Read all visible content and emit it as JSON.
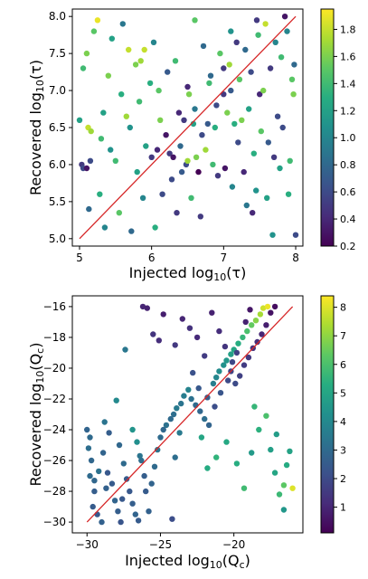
{
  "chart_data": [
    {
      "type": "scatter",
      "title": "",
      "xlabel": "Injected log10(τ)",
      "ylabel": "Recovered log10(τ)",
      "xlabel_parts": {
        "pre": "Injected log",
        "sub": "10",
        "post": "(τ)"
      },
      "ylabel_parts": {
        "pre": "Recovered log",
        "sub": "10",
        "post": "(τ)"
      },
      "xlim": [
        4.9,
        8.1
      ],
      "ylim": [
        4.9,
        8.1
      ],
      "xticks": [
        "5",
        "6",
        "7",
        "8"
      ],
      "xtick_values": [
        5,
        6,
        7,
        8
      ],
      "yticks": [
        "5.0",
        "5.5",
        "6.0",
        "6.5",
        "7.0",
        "7.5",
        "8.0"
      ],
      "ytick_values": [
        5.0,
        5.5,
        6.0,
        6.5,
        7.0,
        7.5,
        8.0
      ],
      "reference_line": {
        "from": [
          5,
          5
        ],
        "to": [
          8,
          8
        ],
        "color": "#d62728"
      },
      "colorbar": {
        "cmap": "viridis",
        "range": [
          0.2,
          1.95
        ],
        "ticks": [
          "0.2",
          "0.4",
          "0.6",
          "0.8",
          "1.0",
          "1.2",
          "1.4",
          "1.6",
          "1.8"
        ],
        "tick_values": [
          0.2,
          0.4,
          0.6,
          0.8,
          1.0,
          1.2,
          1.4,
          1.6,
          1.8
        ]
      },
      "points": [
        [
          5.03,
          6.0,
          0.5
        ],
        [
          5.05,
          5.95,
          0.6
        ],
        [
          5.1,
          5.95,
          0.3
        ],
        [
          5.13,
          5.4,
          0.8
        ],
        [
          5.15,
          6.05,
          0.6
        ],
        [
          5.0,
          6.6,
          1.2
        ],
        [
          5.05,
          7.3,
          1.4
        ],
        [
          5.1,
          7.5,
          1.6
        ],
        [
          5.12,
          6.5,
          1.8
        ],
        [
          5.16,
          6.45,
          1.7
        ],
        [
          5.2,
          7.8,
          1.5
        ],
        [
          5.25,
          7.95,
          1.9
        ],
        [
          5.28,
          5.6,
          1.3
        ],
        [
          5.3,
          6.35,
          1.4
        ],
        [
          5.33,
          6.7,
          1.2
        ],
        [
          5.35,
          5.15,
          1.0
        ],
        [
          5.4,
          7.2,
          1.6
        ],
        [
          5.43,
          6.2,
          1.1
        ],
        [
          5.45,
          7.7,
          1.2
        ],
        [
          5.5,
          6.05,
          1.4
        ],
        [
          5.55,
          5.35,
          1.5
        ],
        [
          5.58,
          6.95,
          1.3
        ],
        [
          5.6,
          7.9,
          0.9
        ],
        [
          5.65,
          6.65,
          1.7
        ],
        [
          5.68,
          7.55,
          1.8
        ],
        [
          5.7,
          6.5,
          1.1
        ],
        [
          5.72,
          5.1,
          0.8
        ],
        [
          5.78,
          7.35,
          1.6
        ],
        [
          5.8,
          5.9,
          1.2
        ],
        [
          5.83,
          6.85,
          1.4
        ],
        [
          5.85,
          7.4,
          1.7
        ],
        [
          5.88,
          5.55,
          1.0
        ],
        [
          5.9,
          7.55,
          1.8
        ],
        [
          5.92,
          6.25,
          1.2
        ],
        [
          5.98,
          7.1,
          1.3
        ],
        [
          6.0,
          6.1,
          0.5
        ],
        [
          6.03,
          7.65,
          1.0
        ],
        [
          6.05,
          5.15,
          1.3
        ],
        [
          6.08,
          6.2,
          0.4
        ],
        [
          6.1,
          7.0,
          1.5
        ],
        [
          6.12,
          6.6,
          1.6
        ],
        [
          6.15,
          5.6,
          0.6
        ],
        [
          6.2,
          6.4,
          0.3
        ],
        [
          6.22,
          7.25,
          0.7
        ],
        [
          6.25,
          6.15,
          0.5
        ],
        [
          6.28,
          5.8,
          0.6
        ],
        [
          6.3,
          6.1,
          0.3
        ],
        [
          6.33,
          7.4,
          1.4
        ],
        [
          6.35,
          5.35,
          0.5
        ],
        [
          6.38,
          6.7,
          0.4
        ],
        [
          6.4,
          6.25,
          0.8
        ],
        [
          6.42,
          5.9,
          0.7
        ],
        [
          6.45,
          6.6,
          0.5
        ],
        [
          6.48,
          6.0,
          0.6
        ],
        [
          6.5,
          6.05,
          1.7
        ],
        [
          6.5,
          7.05,
          0.4
        ],
        [
          6.52,
          6.95,
          1.6
        ],
        [
          6.55,
          5.55,
          1.4
        ],
        [
          6.58,
          6.55,
          1.2
        ],
        [
          6.6,
          6.75,
          0.9
        ],
        [
          6.6,
          7.95,
          1.5
        ],
        [
          6.62,
          6.1,
          1.6
        ],
        [
          6.65,
          5.9,
          0.2
        ],
        [
          6.68,
          5.3,
          0.5
        ],
        [
          6.7,
          6.4,
          0.6
        ],
        [
          6.72,
          7.6,
          0.8
        ],
        [
          6.75,
          6.2,
          1.7
        ],
        [
          6.78,
          6.55,
          0.7
        ],
        [
          6.8,
          7.1,
          1.4
        ],
        [
          6.82,
          7.2,
          0.8
        ],
        [
          6.85,
          6.0,
          1.4
        ],
        [
          6.88,
          6.5,
          1.3
        ],
        [
          6.9,
          6.8,
          0.6
        ],
        [
          6.92,
          5.85,
          0.5
        ],
        [
          6.95,
          7.5,
          1.5
        ],
        [
          7.0,
          7.3,
          0.5
        ],
        [
          7.0,
          6.95,
          0.5
        ],
        [
          7.02,
          5.95,
          0.3
        ],
        [
          7.05,
          6.7,
          1.6
        ],
        [
          7.08,
          7.35,
          1.7
        ],
        [
          7.1,
          7.0,
          0.7
        ],
        [
          7.12,
          5.7,
          1.0
        ],
        [
          7.15,
          6.55,
          1.3
        ],
        [
          7.18,
          7.65,
          0.5
        ],
        [
          7.2,
          6.3,
          0.6
        ],
        [
          7.22,
          7.15,
          1.5
        ],
        [
          7.25,
          6.6,
          1.6
        ],
        [
          7.28,
          5.9,
          0.4
        ],
        [
          7.3,
          7.55,
          0.8
        ],
        [
          7.32,
          5.45,
          0.9
        ],
        [
          7.35,
          6.75,
          1.2
        ],
        [
          7.38,
          7.25,
          0.6
        ],
        [
          7.4,
          5.35,
          0.4
        ],
        [
          7.42,
          6.15,
          1.3
        ],
        [
          7.45,
          5.65,
          1.1
        ],
        [
          7.48,
          7.75,
          1.4
        ],
        [
          7.5,
          6.95,
          0.4
        ],
        [
          7.52,
          6.45,
          1.5
        ],
        [
          7.55,
          7.0,
          1.6
        ],
        [
          7.58,
          7.9,
          1.8
        ],
        [
          7.6,
          5.55,
          1.2
        ],
        [
          7.62,
          6.3,
          0.7
        ],
        [
          7.65,
          7.3,
          0.5
        ],
        [
          7.68,
          5.05,
          1.1
        ],
        [
          7.7,
          6.1,
          0.5
        ],
        [
          7.72,
          7.65,
          1.0
        ],
        [
          7.75,
          6.65,
          0.6
        ],
        [
          7.78,
          5.95,
          1.2
        ],
        [
          7.8,
          7.45,
          1.4
        ],
        [
          7.82,
          6.5,
          0.6
        ],
        [
          7.85,
          8.0,
          0.3
        ],
        [
          7.88,
          7.8,
          1.0
        ],
        [
          7.9,
          5.6,
          1.3
        ],
        [
          7.92,
          6.05,
          1.4
        ],
        [
          7.95,
          7.15,
          1.5
        ],
        [
          7.97,
          6.95,
          1.6
        ],
        [
          8.0,
          5.05,
          0.6
        ],
        [
          7.98,
          7.35,
          0.8
        ],
        [
          7.46,
          7.95,
          0.5
        ],
        [
          7.1,
          7.8,
          1.1
        ]
      ]
    },
    {
      "type": "scatter",
      "title": "",
      "xlabel": "Injected log10(Qc)",
      "ylabel": "Recovered log10(Qc)",
      "xlabel_parts": {
        "pre": "Injected log",
        "sub": "10",
        "post": "(Q",
        "sub2": "c",
        "post2": ")"
      },
      "ylabel_parts": {
        "pre": "Recovered log",
        "sub": "10",
        "post": "(Q",
        "sub2": "c",
        "post2": ")"
      },
      "xlim": [
        -31,
        -15.3
      ],
      "ylim": [
        -30.7,
        -15.3
      ],
      "xticks": [
        "−30",
        "−25",
        "−20"
      ],
      "xtick_values": [
        -30,
        -25,
        -20
      ],
      "yticks": [
        "−30",
        "−28",
        "−26",
        "−24",
        "−22",
        "−20",
        "−18",
        "−16"
      ],
      "ytick_values": [
        -30,
        -28,
        -26,
        -24,
        -22,
        -20,
        -18,
        -16
      ],
      "reference_line": {
        "from": [
          -30,
          -30
        ],
        "to": [
          -16,
          -16
        ],
        "color": "#d62728"
      },
      "colorbar": {
        "cmap": "viridis",
        "range": [
          0.1,
          8.4
        ],
        "ticks": [
          "1",
          "2",
          "3",
          "4",
          "5",
          "6",
          "7",
          "8"
        ],
        "tick_values": [
          1,
          2,
          3,
          4,
          5,
          6,
          7,
          8
        ]
      },
      "points": [
        [
          -30.0,
          -24.0,
          2.8
        ],
        [
          -29.8,
          -24.5,
          3.0
        ],
        [
          -29.9,
          -25.2,
          3.1
        ],
        [
          -29.7,
          -26.0,
          2.9
        ],
        [
          -29.8,
          -27.0,
          3.0
        ],
        [
          -29.5,
          -28.0,
          2.6
        ],
        [
          -29.6,
          -29.0,
          2.5
        ],
        [
          -29.3,
          -29.5,
          2.4
        ],
        [
          -29.0,
          -30.0,
          2.7
        ],
        [
          -28.9,
          -25.5,
          2.8
        ],
        [
          -28.8,
          -23.5,
          3.3
        ],
        [
          -28.5,
          -24.2,
          2.6
        ],
        [
          -28.6,
          -26.8,
          2.4
        ],
        [
          -28.3,
          -27.5,
          2.5
        ],
        [
          -28.1,
          -28.6,
          2.8
        ],
        [
          -27.9,
          -29.3,
          2.6
        ],
        [
          -27.7,
          -30.0,
          2.3
        ],
        [
          -27.8,
          -25.0,
          2.9
        ],
        [
          -27.5,
          -26.2,
          3.0
        ],
        [
          -27.3,
          -27.2,
          2.5
        ],
        [
          -27.1,
          -28.0,
          2.4
        ],
        [
          -26.9,
          -28.8,
          2.6
        ],
        [
          -26.7,
          -29.5,
          2.8
        ],
        [
          -26.5,
          -29.9,
          2.5
        ],
        [
          -26.9,
          -24.0,
          4.4
        ],
        [
          -26.6,
          -24.8,
          4.2
        ],
        [
          -26.3,
          -26.0,
          3.1
        ],
        [
          -26.1,
          -27.0,
          2.6
        ],
        [
          -26.0,
          -28.0,
          2.5
        ],
        [
          -25.8,
          -29.3,
          2.7
        ],
        [
          -25.6,
          -27.5,
          2.8
        ],
        [
          -25.4,
          -26.4,
          3.0
        ],
        [
          -25.2,
          -25.3,
          3.3
        ],
        [
          -25.0,
          -24.5,
          3.0
        ],
        [
          -24.8,
          -24.0,
          2.9
        ],
        [
          -24.6,
          -23.7,
          3.2
        ],
        [
          -24.3,
          -23.3,
          3.0
        ],
        [
          -24.1,
          -23.0,
          3.1
        ],
        [
          -23.9,
          -22.6,
          3.5
        ],
        [
          -23.6,
          -22.3,
          3.3
        ],
        [
          -23.4,
          -21.8,
          3.6
        ],
        [
          -23.1,
          -21.4,
          3.8
        ],
        [
          -22.9,
          -22.0,
          3.2
        ],
        [
          -22.6,
          -22.4,
          3.0
        ],
        [
          -22.3,
          -22.8,
          2.9
        ],
        [
          -22.0,
          -23.3,
          3.1
        ],
        [
          -21.7,
          -23.7,
          2.8
        ],
        [
          -21.4,
          -21.0,
          3.6
        ],
        [
          -21.2,
          -20.6,
          3.9
        ],
        [
          -21.0,
          -20.2,
          4.1
        ],
        [
          -20.7,
          -19.8,
          4.3
        ],
        [
          -20.5,
          -19.5,
          4.5
        ],
        [
          -20.2,
          -19.1,
          4.8
        ],
        [
          -20.0,
          -18.8,
          5.0
        ],
        [
          -19.7,
          -18.4,
          5.3
        ],
        [
          -19.4,
          -18.0,
          5.6
        ],
        [
          -19.1,
          -17.6,
          6.0
        ],
        [
          -18.8,
          -17.2,
          6.4
        ],
        [
          -18.5,
          -16.9,
          6.9
        ],
        [
          -18.2,
          -16.5,
          7.3
        ],
        [
          -18.0,
          -16.1,
          7.8
        ],
        [
          -17.7,
          -16.0,
          8.2
        ],
        [
          -27.4,
          -18.8,
          3.4
        ],
        [
          -26.2,
          -16.0,
          1.0
        ],
        [
          -25.9,
          -16.1,
          0.9
        ],
        [
          -25.5,
          -17.8,
          1.4
        ],
        [
          -25.1,
          -18.2,
          1.2
        ],
        [
          -24.8,
          -16.5,
          0.8
        ],
        [
          -24.0,
          -18.5,
          1.5
        ],
        [
          -23.5,
          -16.8,
          1.0
        ],
        [
          -23.0,
          -17.4,
          1.3
        ],
        [
          -22.5,
          -18.0,
          1.1
        ],
        [
          -22.0,
          -19.2,
          1.6
        ],
        [
          -21.5,
          -16.4,
          0.9
        ],
        [
          -21.0,
          -17.6,
          1.2
        ],
        [
          -20.6,
          -18.6,
          1.4
        ],
        [
          -20.2,
          -20.2,
          1.8
        ],
        [
          -19.9,
          -21.0,
          2.0
        ],
        [
          -19.6,
          -20.5,
          1.7
        ],
        [
          -19.3,
          -19.8,
          1.6
        ],
        [
          -19.0,
          -19.3,
          1.5
        ],
        [
          -18.7,
          -18.7,
          1.3
        ],
        [
          -18.4,
          -18.3,
          1.2
        ],
        [
          -18.1,
          -17.8,
          1.0
        ],
        [
          -17.8,
          -17.2,
          0.8
        ],
        [
          -17.5,
          -16.4,
          0.5
        ],
        [
          -17.2,
          -16.0,
          0.4
        ],
        [
          -18.9,
          -16.2,
          0.6
        ],
        [
          -19.2,
          -17.0,
          0.9
        ],
        [
          -22.8,
          -20.3,
          2.2
        ],
        [
          -22.4,
          -21.3,
          2.4
        ],
        [
          -21.8,
          -21.9,
          2.6
        ],
        [
          -21.3,
          -22.5,
          2.1
        ],
        [
          -20.9,
          -21.6,
          2.3
        ],
        [
          -20.4,
          -20.8,
          2.0
        ],
        [
          -20.1,
          -19.6,
          1.9
        ],
        [
          -19.8,
          -19.0,
          1.7
        ],
        [
          -22.2,
          -24.5,
          5.0
        ],
        [
          -21.8,
          -26.5,
          5.2
        ],
        [
          -21.2,
          -25.8,
          5.5
        ],
        [
          -20.5,
          -24.8,
          5.1
        ],
        [
          -19.8,
          -26.2,
          5.3
        ],
        [
          -19.3,
          -27.8,
          5.8
        ],
        [
          -18.8,
          -25.5,
          4.6
        ],
        [
          -18.3,
          -24.0,
          5.4
        ],
        [
          -17.8,
          -23.1,
          6.0
        ],
        [
          -17.5,
          -25.3,
          4.8
        ],
        [
          -17.2,
          -26.8,
          5.0
        ],
        [
          -16.9,
          -28.2,
          5.7
        ],
        [
          -16.6,
          -27.6,
          6.3
        ],
        [
          -16.4,
          -26.3,
          5.2
        ],
        [
          -16.2,
          -25.4,
          4.9
        ],
        [
          -16.0,
          -27.8,
          8.0
        ],
        [
          -16.6,
          -29.2,
          4.5
        ],
        [
          -17.1,
          -24.3,
          4.7
        ],
        [
          -18.6,
          -22.5,
          5.6
        ],
        [
          -28.0,
          -22.1,
          4.0
        ],
        [
          -24.2,
          -29.8,
          2.1
        ],
        [
          -24.0,
          -25.8,
          3.1
        ],
        [
          -29.2,
          -26.7,
          3.2
        ],
        [
          -28.7,
          -27.8,
          2.7
        ],
        [
          -26.4,
          -25.7,
          3.3
        ],
        [
          -27.6,
          -28.5,
          2.4
        ],
        [
          -29.5,
          -27.3,
          2.9
        ],
        [
          -23.7,
          -24.2,
          3.5
        ]
      ]
    }
  ]
}
